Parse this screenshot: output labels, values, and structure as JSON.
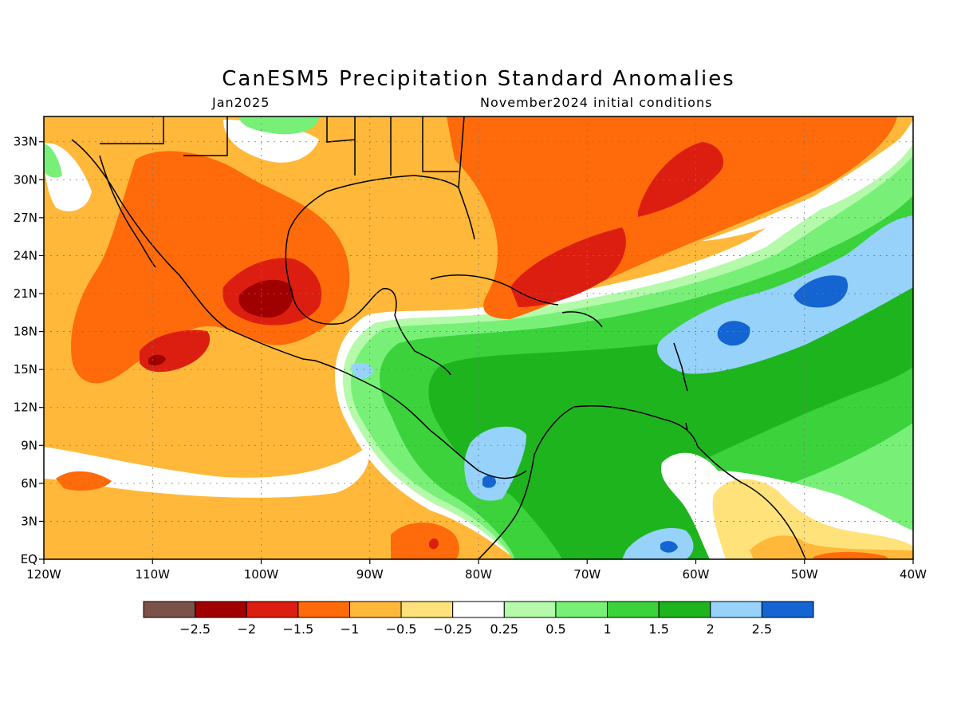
{
  "title": "CanESM5 Precipitation Standard Anomalies",
  "subtitle_left": "Jan2025",
  "subtitle_right": "November2024 initial conditions",
  "map": {
    "lon_range": [
      -120,
      -40
    ],
    "lat_range": [
      0,
      35
    ],
    "lon_ticks": [
      {
        "value": -120,
        "label": "120W"
      },
      {
        "value": -110,
        "label": "110W"
      },
      {
        "value": -100,
        "label": "100W"
      },
      {
        "value": -90,
        "label": "90W"
      },
      {
        "value": -80,
        "label": "80W"
      },
      {
        "value": -70,
        "label": "70W"
      },
      {
        "value": -60,
        "label": "60W"
      },
      {
        "value": -50,
        "label": "50W"
      },
      {
        "value": -40,
        "label": "40W"
      }
    ],
    "lat_ticks": [
      {
        "value": 0,
        "label": "EQ"
      },
      {
        "value": 3,
        "label": "3N"
      },
      {
        "value": 6,
        "label": "6N"
      },
      {
        "value": 9,
        "label": "9N"
      },
      {
        "value": 12,
        "label": "12N"
      },
      {
        "value": 15,
        "label": "15N"
      },
      {
        "value": 18,
        "label": "18N"
      },
      {
        "value": 21,
        "label": "21N"
      },
      {
        "value": 24,
        "label": "24N"
      },
      {
        "value": 27,
        "label": "27N"
      },
      {
        "value": 30,
        "label": "30N"
      },
      {
        "value": 33,
        "label": "33N"
      }
    ],
    "grid": true
  },
  "colorbar": {
    "colors": [
      "#7a5248",
      "#a00000",
      "#dc1e10",
      "#ff6a0a",
      "#ffb83a",
      "#ffe27a",
      "#ffffff",
      "#b4faaa",
      "#78f078",
      "#3cd23c",
      "#1eb41e",
      "#96d2fa",
      "#1464d2"
    ],
    "labels": [
      "−2.5",
      "−2",
      "−1.5",
      "−1",
      "−0.5",
      "−0.25",
      "0.25",
      "0.5",
      "1",
      "1.5",
      "2",
      "2.5"
    ]
  }
}
